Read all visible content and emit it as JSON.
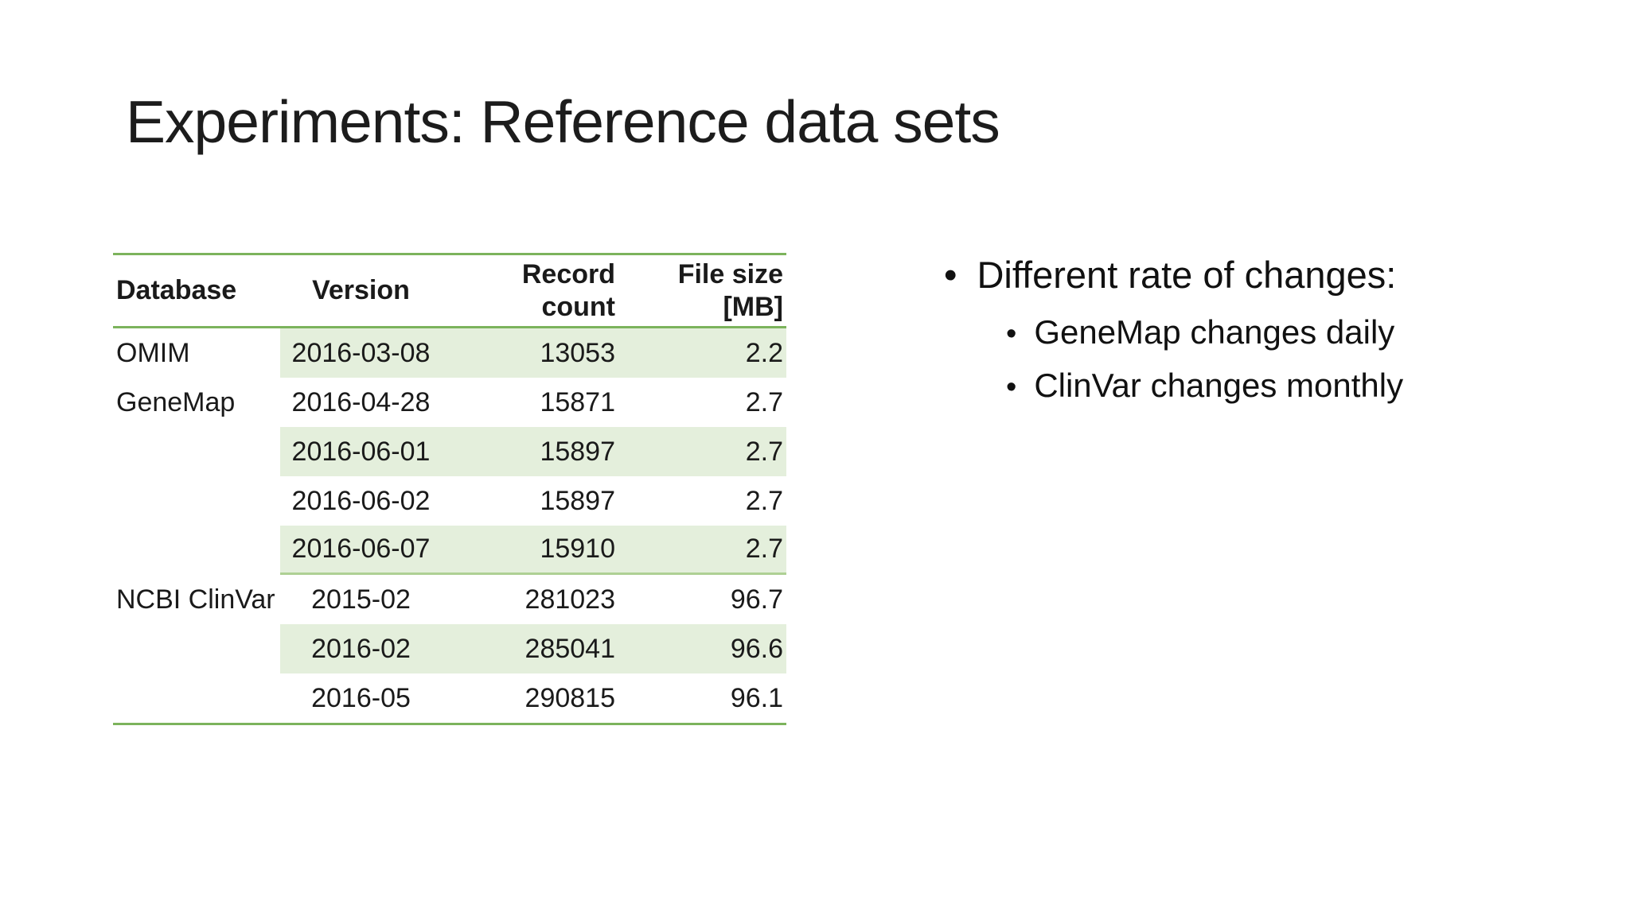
{
  "slide_title": "Experiments: Reference data sets",
  "table": {
    "headers": {
      "database": "Database",
      "version": "Version",
      "record_count": [
        "Record",
        "count"
      ],
      "file_size": [
        "File size",
        "[MB]"
      ]
    },
    "rows": [
      {
        "db": "OMIM",
        "version": "2016-03-08",
        "records": "13053",
        "size": "2.2"
      },
      {
        "db": "GeneMap",
        "version": "2016-04-28",
        "records": "15871",
        "size": "2.7"
      },
      {
        "db": "",
        "version": "2016-06-01",
        "records": "15897",
        "size": "2.7"
      },
      {
        "db": "",
        "version": "2016-06-02",
        "records": "15897",
        "size": "2.7"
      },
      {
        "db": "",
        "version": "2016-06-07",
        "records": "15910",
        "size": "2.7"
      },
      {
        "db": "NCBI ClinVar",
        "version": "2015-02",
        "records": "281023",
        "size": "96.7"
      },
      {
        "db": "",
        "version": "2016-02",
        "records": "285041",
        "size": "96.6"
      },
      {
        "db": "",
        "version": "2016-05",
        "records": "290815",
        "size": "96.1"
      }
    ]
  },
  "bullets": {
    "glyph": "•",
    "main": "Different rate of changes:",
    "sub": [
      "GeneMap changes daily",
      "ClinVar changes monthly"
    ]
  },
  "colors": {
    "table_border_green": "#7cb35c",
    "row_band_green": "#e4efdc",
    "section_divider_green": "#aed094",
    "text": "#1a1a1a",
    "background": "#ffffff"
  }
}
